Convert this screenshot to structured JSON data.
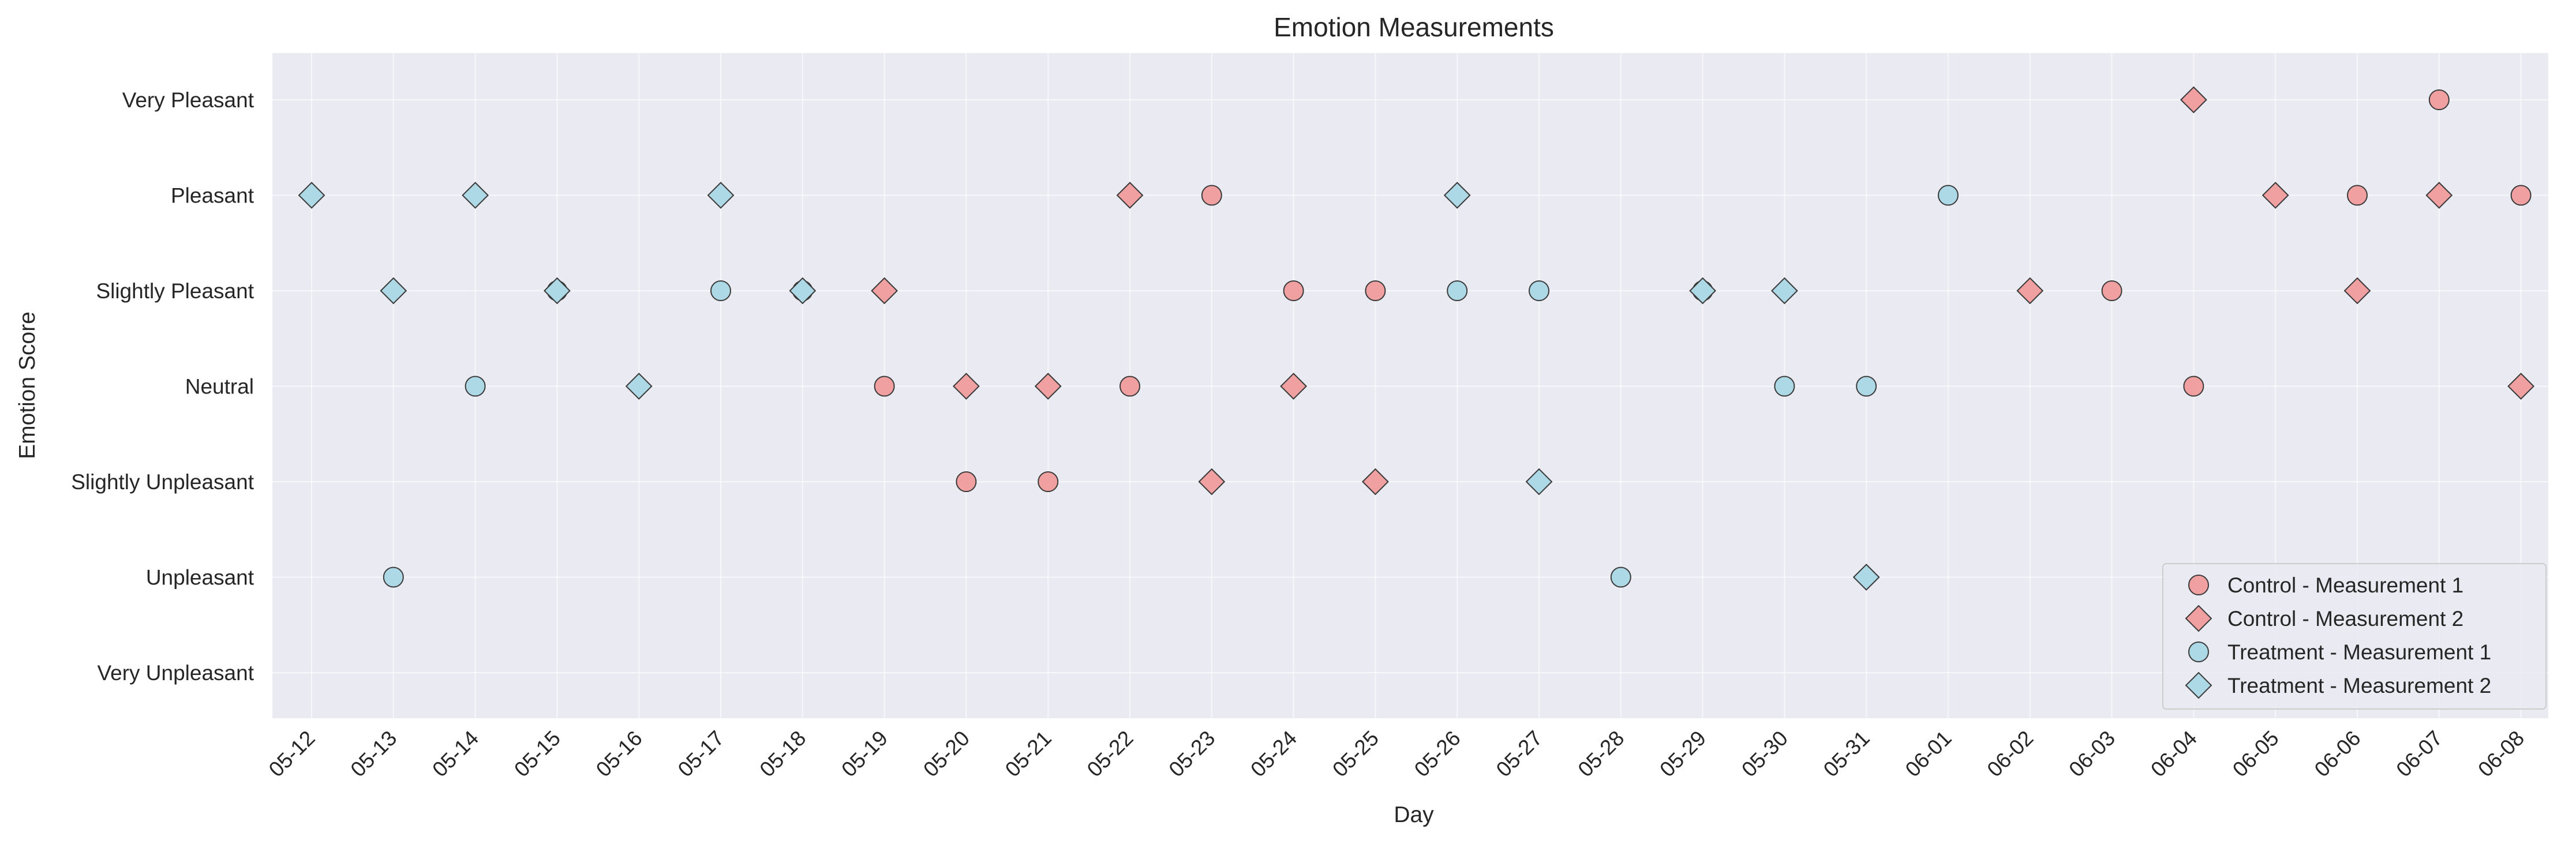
{
  "chart_data": {
    "type": "scatter",
    "title": "Emotion Measurements",
    "xlabel": "Day",
    "ylabel": "Emotion Score",
    "grid": true,
    "legend_position": "lower-right",
    "categories": [
      "05-12",
      "05-13",
      "05-14",
      "05-15",
      "05-16",
      "05-17",
      "05-18",
      "05-19",
      "05-20",
      "05-21",
      "05-22",
      "05-23",
      "05-24",
      "05-25",
      "05-26",
      "05-27",
      "05-28",
      "05-29",
      "05-30",
      "05-31",
      "06-01",
      "06-02",
      "06-03",
      "06-04",
      "06-05",
      "06-06",
      "06-07",
      "06-08"
    ],
    "y_levels": [
      "Very Unpleasant",
      "Unpleasant",
      "Slightly Unpleasant",
      "Neutral",
      "Slightly Pleasant",
      "Pleasant",
      "Very Pleasant"
    ],
    "series": [
      {
        "name": "Control - Measurement 1",
        "marker": "circle",
        "color": "#f0a0a0",
        "points": [
          {
            "x": "05-19",
            "y": "Neutral"
          },
          {
            "x": "05-20",
            "y": "Slightly Unpleasant"
          },
          {
            "x": "05-21",
            "y": "Slightly Unpleasant"
          },
          {
            "x": "05-22",
            "y": "Neutral"
          },
          {
            "x": "05-23",
            "y": "Pleasant"
          },
          {
            "x": "05-24",
            "y": "Slightly Pleasant"
          },
          {
            "x": "05-25",
            "y": "Slightly Pleasant"
          },
          {
            "x": "06-03",
            "y": "Slightly Pleasant"
          },
          {
            "x": "06-04",
            "y": "Neutral"
          },
          {
            "x": "06-06",
            "y": "Pleasant"
          },
          {
            "x": "06-07",
            "y": "Very Pleasant"
          },
          {
            "x": "06-08",
            "y": "Pleasant"
          }
        ]
      },
      {
        "name": "Control - Measurement 2",
        "marker": "diamond",
        "color": "#f0a0a0",
        "points": [
          {
            "x": "05-19",
            "y": "Slightly Pleasant"
          },
          {
            "x": "05-20",
            "y": "Neutral"
          },
          {
            "x": "05-21",
            "y": "Neutral"
          },
          {
            "x": "05-22",
            "y": "Pleasant"
          },
          {
            "x": "05-23",
            "y": "Slightly Unpleasant"
          },
          {
            "x": "05-24",
            "y": "Neutral"
          },
          {
            "x": "05-25",
            "y": "Slightly Unpleasant"
          },
          {
            "x": "06-02",
            "y": "Slightly Pleasant"
          },
          {
            "x": "06-04",
            "y": "Very Pleasant"
          },
          {
            "x": "06-05",
            "y": "Pleasant"
          },
          {
            "x": "06-06",
            "y": "Slightly Pleasant"
          },
          {
            "x": "06-07",
            "y": "Pleasant"
          },
          {
            "x": "06-08",
            "y": "Neutral"
          }
        ]
      },
      {
        "name": "Treatment - Measurement 1",
        "marker": "circle",
        "color": "#add8e6",
        "points": [
          {
            "x": "05-13",
            "y": "Unpleasant"
          },
          {
            "x": "05-14",
            "y": "Neutral"
          },
          {
            "x": "05-15",
            "y": "Slightly Pleasant"
          },
          {
            "x": "05-17",
            "y": "Slightly Pleasant"
          },
          {
            "x": "05-18",
            "y": "Slightly Pleasant"
          },
          {
            "x": "05-26",
            "y": "Slightly Pleasant"
          },
          {
            "x": "05-27",
            "y": "Slightly Pleasant"
          },
          {
            "x": "05-28",
            "y": "Unpleasant"
          },
          {
            "x": "05-29",
            "y": "Slightly Pleasant"
          },
          {
            "x": "05-30",
            "y": "Neutral"
          },
          {
            "x": "05-31",
            "y": "Neutral"
          },
          {
            "x": "06-01",
            "y": "Pleasant"
          }
        ]
      },
      {
        "name": "Treatment - Measurement 2",
        "marker": "diamond",
        "color": "#add8e6",
        "points": [
          {
            "x": "05-12",
            "y": "Pleasant"
          },
          {
            "x": "05-13",
            "y": "Slightly Pleasant"
          },
          {
            "x": "05-14",
            "y": "Pleasant"
          },
          {
            "x": "05-15",
            "y": "Slightly Pleasant"
          },
          {
            "x": "05-16",
            "y": "Neutral"
          },
          {
            "x": "05-17",
            "y": "Pleasant"
          },
          {
            "x": "05-18",
            "y": "Slightly Pleasant"
          },
          {
            "x": "05-26",
            "y": "Pleasant"
          },
          {
            "x": "05-27",
            "y": "Slightly Unpleasant"
          },
          {
            "x": "05-29",
            "y": "Slightly Pleasant"
          },
          {
            "x": "05-30",
            "y": "Slightly Pleasant"
          },
          {
            "x": "05-31",
            "y": "Unpleasant"
          }
        ]
      }
    ]
  },
  "colors": {
    "plot_background": "#eaeaf2",
    "grid": "#ffffff",
    "marker_edge": "#3a3a3a",
    "text": "#262626"
  }
}
